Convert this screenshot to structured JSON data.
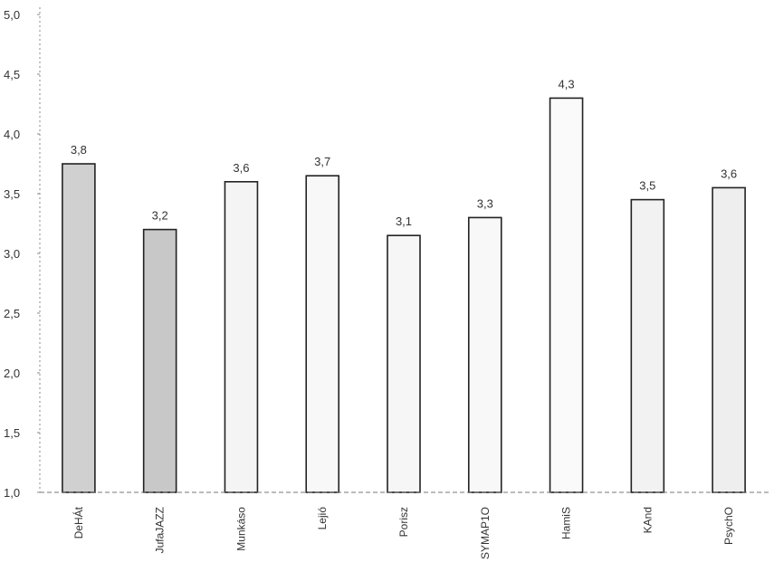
{
  "chart_data": {
    "type": "bar",
    "title": "",
    "xlabel": "",
    "ylabel": "",
    "ylim": [
      1.0,
      5.0
    ],
    "yticks": [
      "1,0",
      "1,5",
      "2,0",
      "2,5",
      "3,0",
      "3,5",
      "4,0",
      "4,5",
      "5,0"
    ],
    "grid": false,
    "categories": [
      "DeHÁt",
      "JufaJAZZ",
      "Munkáso",
      "Lejió",
      "Porisz",
      "SYMAP1O",
      "HamiS",
      "KAnd",
      "PsychO"
    ],
    "values": [
      3.75,
      3.2,
      3.6,
      3.65,
      3.15,
      3.3,
      4.3,
      3.45,
      3.55
    ],
    "value_labels": [
      "3,8",
      "3,2",
      "3,6",
      "3,7",
      "3,1",
      "3,3",
      "4,3",
      "3,5",
      "3,6"
    ],
    "bar_fill": [
      "#d0d0d0",
      "#c8c8c8",
      "#f4f4f4",
      "#f8f8f8",
      "#f6f6f6",
      "#f8f8f8",
      "#fafafa",
      "#f2f2f2",
      "#eeeeee"
    ],
    "bar_stroke": "#222222"
  }
}
